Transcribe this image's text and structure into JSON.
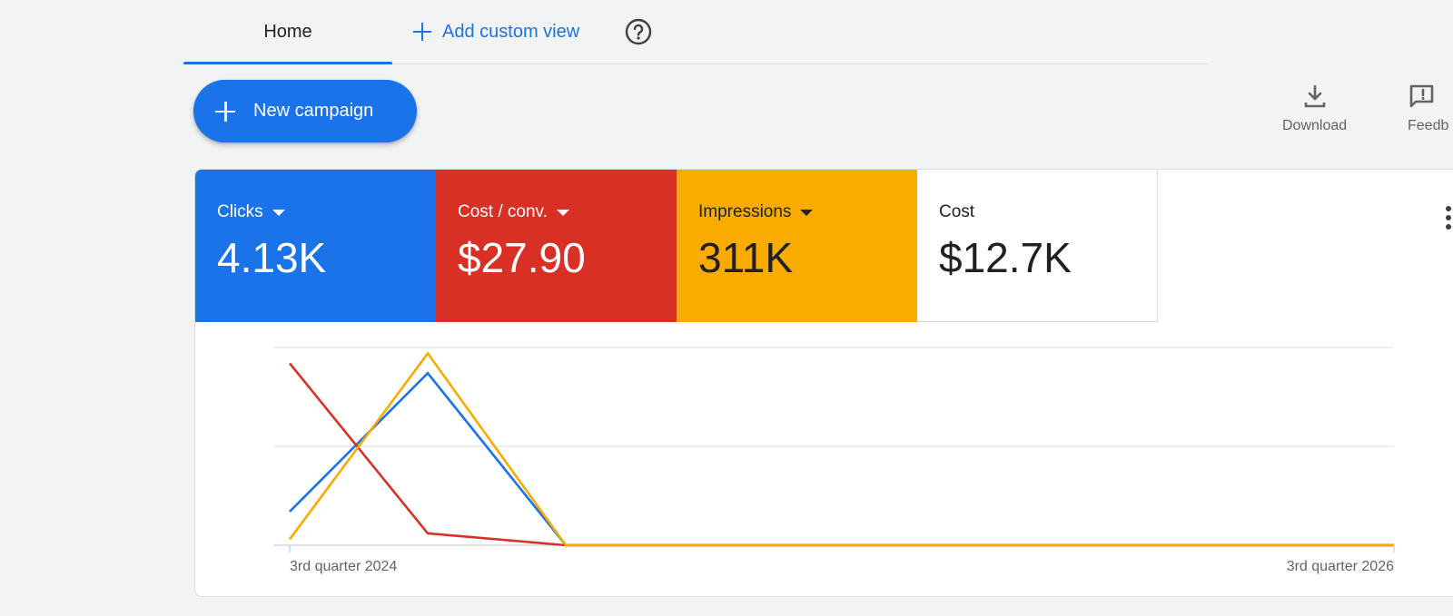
{
  "tabs": {
    "home_label": "Home",
    "add_view_label": "Add custom view"
  },
  "icons": {
    "help": "help-circle-icon",
    "add": "plus-icon",
    "download": "download-icon",
    "feedback": "feedback-icon",
    "more": "more-vert-icon"
  },
  "toolbar": {
    "new_campaign_label": "New campaign",
    "download_label": "Download",
    "feedback_label": "Feedb"
  },
  "metrics": [
    {
      "label": "Clicks",
      "value": "4.13K",
      "color": "#1a73e8",
      "has_dropdown": true
    },
    {
      "label": "Cost / conv.",
      "value": "$27.90",
      "color": "#d93025",
      "has_dropdown": true
    },
    {
      "label": "Impressions",
      "value": "311K",
      "color": "#f9ab00",
      "has_dropdown": true
    },
    {
      "label": "Cost",
      "value": "$12.7K",
      "color": "#ffffff",
      "has_dropdown": false
    }
  ],
  "chart_data": {
    "type": "line",
    "x": [
      0,
      1,
      2,
      3,
      4,
      5,
      6,
      7,
      8
    ],
    "x_tick_labels": [
      {
        "index": 0,
        "label": "3rd quarter 2024"
      },
      {
        "index": 8,
        "label": "3rd quarter 2026"
      }
    ],
    "ylim": [
      0,
      1
    ],
    "grid": true,
    "series": [
      {
        "color": "#1a73e8",
        "values": [
          0.17,
          0.87,
          0,
          0,
          0,
          0,
          0,
          0,
          0
        ]
      },
      {
        "color": "#d93025",
        "values": [
          0.92,
          0.06,
          0,
          0,
          0,
          0,
          0,
          0,
          0
        ]
      },
      {
        "color": "#f9ab00",
        "values": [
          0.03,
          0.97,
          0,
          0,
          0,
          0,
          0,
          0,
          0
        ]
      }
    ]
  }
}
